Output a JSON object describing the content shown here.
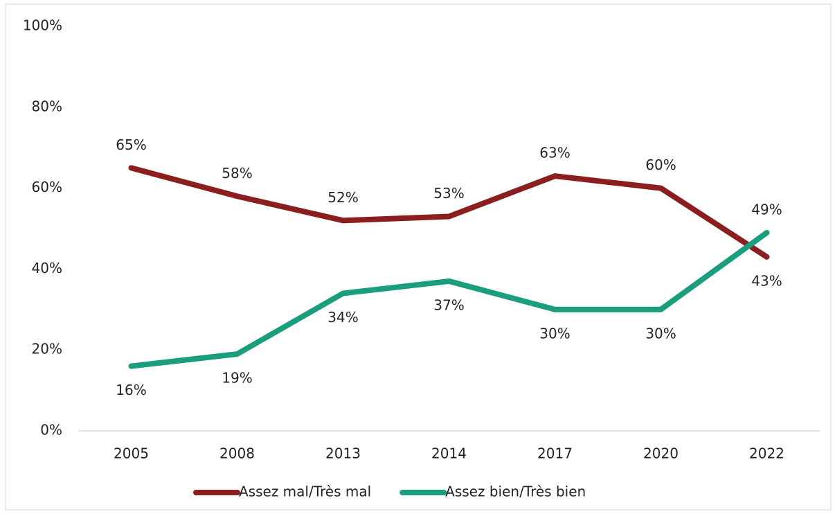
{
  "chart_data": {
    "type": "line",
    "categories": [
      "2005",
      "2008",
      "2013",
      "2014",
      "2017",
      "2020",
      "2022"
    ],
    "series": [
      {
        "name": "Assez mal/Très mal",
        "color": "#8b1e1e",
        "values": [
          65,
          58,
          52,
          53,
          63,
          60,
          43
        ],
        "value_labels": [
          "65%",
          "58%",
          "52%",
          "53%",
          "63%",
          "60%",
          "43%"
        ]
      },
      {
        "name": "Assez bien/Très bien",
        "color": "#1a9e7e",
        "values": [
          16,
          19,
          34,
          37,
          30,
          30,
          49
        ],
        "value_labels": [
          "16%",
          "19%",
          "34%",
          "37%",
          "30%",
          "30%",
          "49%"
        ]
      }
    ],
    "ylim": [
      0,
      100
    ],
    "yticks": [
      {
        "value": 0,
        "label": "0%"
      },
      {
        "value": 20,
        "label": "20%"
      },
      {
        "value": 40,
        "label": "40%"
      },
      {
        "value": 60,
        "label": "60%"
      },
      {
        "value": 80,
        "label": "80%"
      },
      {
        "value": 100,
        "label": "100%"
      }
    ],
    "grid": false,
    "legend": "bottom"
  }
}
